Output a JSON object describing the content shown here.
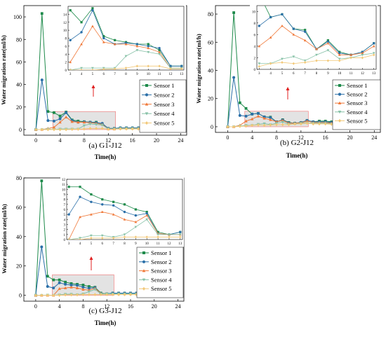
{
  "colors": {
    "Sensor 1": "#1d8a4a",
    "Sensor 2": "#2a6fa8",
    "Sensor 3": "#f07838",
    "Sensor 4": "#88c2a8",
    "Sensor 5": "#f2c878",
    "highlight_fill": "#e3e3e3",
    "highlight_stroke": "#f08080",
    "arrow": "#e02020"
  },
  "markers": {
    "Sensor 1": "square",
    "Sensor 2": "circle",
    "Sensor 3": "triangle-up",
    "Sensor 4": "triangle-down",
    "Sensor 5": "diamond"
  },
  "chart_data": [
    {
      "type": "line",
      "caption": "(a) G1-J12",
      "xlabel": "Time(h)",
      "ylabel": "Water migration rate(ml/h)",
      "xlim": [
        -2,
        25
      ],
      "ylim": [
        -5,
        110
      ],
      "xticks": [
        0,
        4,
        8,
        12,
        16,
        20,
        24
      ],
      "yticks": [
        0,
        20,
        40,
        60,
        80,
        100
      ],
      "legend": "right",
      "x": [
        0,
        1,
        2,
        3,
        4,
        5,
        6,
        7,
        8,
        9,
        10,
        11,
        12,
        13,
        14,
        15,
        16,
        17,
        18,
        19,
        20,
        21,
        22,
        23,
        24
      ],
      "series": [
        {
          "name": "Sensor 1",
          "values": [
            0,
            103,
            16,
            15,
            12,
            15.5,
            8.5,
            7.5,
            7,
            6.5,
            6.5,
            5,
            1,
            1,
            1.5,
            1.5,
            1.5,
            1.5,
            1.5,
            1.5,
            1.5,
            1,
            1,
            1,
            1
          ]
        },
        {
          "name": "Sensor 2",
          "values": [
            0,
            44,
            8,
            7.5,
            9.5,
            15,
            8,
            6.5,
            6.8,
            6.5,
            6,
            5.5,
            1,
            1,
            1.5,
            1.5,
            1.5,
            1.5,
            1.5,
            1.5,
            1.5,
            1,
            1,
            1,
            1
          ]
        },
        {
          "name": "Sensor 3",
          "values": [
            0,
            0,
            1,
            2,
            6.5,
            11,
            7,
            6.5,
            6.5,
            6,
            5.5,
            4.5,
            0.5,
            0.5,
            1,
            1,
            1,
            1,
            1,
            1,
            1,
            1,
            1,
            1,
            1
          ]
        },
        {
          "name": "Sensor 4",
          "values": [
            0,
            0,
            0.5,
            0,
            0.5,
            0.5,
            0.5,
            0.5,
            3.5,
            5,
            4.5,
            4,
            0.5,
            0.5,
            1,
            1,
            1,
            1,
            1,
            1,
            1,
            1,
            1,
            1,
            1
          ]
        },
        {
          "name": "Sensor 5",
          "values": [
            0,
            0,
            0,
            0,
            0,
            0,
            0.2,
            0.3,
            0.5,
            1,
            1,
            1,
            0.3,
            0.3,
            0.5,
            0.5,
            0.5,
            0.5,
            0.5,
            0.5,
            0.5,
            0.5,
            0.5,
            0.5,
            0.5
          ]
        }
      ],
      "inset": {
        "xlim": [
          2.8,
          13.2
        ],
        "ylim": [
          0,
          16
        ],
        "xticks": [
          3,
          4,
          5,
          6,
          7,
          8,
          9,
          10,
          11,
          12,
          13
        ],
        "yticks": [
          0,
          2,
          4,
          6,
          8,
          10,
          12,
          14
        ]
      }
    },
    {
      "type": "line",
      "caption": "(b) G2-J12",
      "xlabel": "Time(h)",
      "ylabel": "Water migration rate(ml/h)",
      "xlim": [
        -2,
        25
      ],
      "ylim": [
        -4,
        86
      ],
      "xticks": [
        0,
        4,
        8,
        12,
        16,
        20,
        24
      ],
      "yticks": [
        0,
        20,
        40,
        60,
        80
      ],
      "legend": "right",
      "x": [
        0,
        1,
        2,
        3,
        4,
        5,
        6,
        7,
        8,
        9,
        10,
        11,
        12,
        13,
        14,
        15,
        16,
        17,
        18,
        19,
        20,
        21,
        22,
        23,
        24
      ],
      "series": [
        {
          "name": "Sensor 1",
          "values": [
            0,
            81,
            17,
            13,
            9,
            9.5,
            7,
            6.8,
            3.5,
            5,
            3,
            2.5,
            3,
            4.5,
            3.5,
            4,
            4,
            3.5,
            3,
            2.5,
            2.5,
            2.5,
            2.5,
            2.5,
            2
          ]
        },
        {
          "name": "Sensor 2",
          "values": [
            0,
            35,
            8,
            7.5,
            9,
            9.5,
            7,
            6.5,
            3.5,
            4.8,
            2.8,
            2.5,
            3,
            4.5,
            3.5,
            3.5,
            3.5,
            3,
            2.5,
            2.5,
            2.5,
            2.5,
            2.5,
            2.5,
            2
          ]
        },
        {
          "name": "Sensor 3",
          "values": [
            0,
            0,
            1,
            4,
            5.5,
            7.5,
            6,
            5,
            3.5,
            4.5,
            2.5,
            2.5,
            2.8,
            4,
            3,
            3,
            3,
            2.5,
            2.5,
            2,
            2,
            2,
            2,
            2,
            2
          ]
        },
        {
          "name": "Sensor 4",
          "values": [
            0,
            0,
            0.5,
            1,
            1,
            1.8,
            2.2,
            1.5,
            2.5,
            3.3,
            1.8,
            2,
            2.5,
            2.8,
            2.5,
            2.5,
            2.5,
            2,
            2,
            2,
            1.8,
            1.8,
            1.8,
            1.8,
            1.5
          ]
        },
        {
          "name": "Sensor 5",
          "values": [
            0,
            0,
            0.3,
            0.5,
            1,
            1.2,
            1,
            1.2,
            1.5,
            1.5,
            1.5,
            2,
            2,
            2.5,
            2,
            2,
            2,
            1.8,
            1.8,
            1.5,
            1.5,
            1.5,
            1.5,
            1.5,
            1.5
          ]
        }
      ],
      "inset": {
        "xlim": [
          2.8,
          13.2
        ],
        "ylim": [
          0,
          11
        ],
        "xticks": [
          3,
          4,
          5,
          6,
          7,
          8,
          9,
          10,
          11,
          12,
          13
        ],
        "yticks": [
          0,
          2,
          4,
          6,
          8,
          10
        ]
      }
    },
    {
      "type": "line",
      "caption": "(c) G3-J12",
      "xlabel": "Time(h)",
      "ylabel": "Water migration rate(ml/h)",
      "xlim": [
        -2,
        25
      ],
      "ylim": [
        -4,
        80
      ],
      "xticks": [
        0,
        4,
        8,
        12,
        16,
        20,
        24
      ],
      "yticks": [
        0,
        20,
        40,
        60,
        80
      ],
      "legend": "right",
      "x": [
        0,
        1,
        2,
        3,
        4,
        5,
        6,
        7,
        8,
        9,
        10,
        11,
        12,
        13,
        14,
        15,
        16,
        17,
        18,
        19,
        20,
        21,
        22,
        23,
        24
      ],
      "series": [
        {
          "name": "Sensor 1",
          "values": [
            0,
            78,
            13,
            10.5,
            10.5,
            9,
            8,
            7.5,
            7,
            6,
            5.5,
            1.5,
            1,
            1.5,
            1.5,
            1.5,
            1.5,
            1.5,
            1.5,
            1.5,
            1.5,
            1.5,
            1.5,
            1.5,
            1
          ]
        },
        {
          "name": "Sensor 2",
          "values": [
            0,
            33,
            6,
            5,
            8.5,
            7.5,
            7,
            6.8,
            5.5,
            4.8,
            5.2,
            1.2,
            1,
            1.5,
            1.5,
            1.5,
            1.5,
            1.5,
            1.5,
            1.5,
            1.5,
            1.5,
            1.5,
            1.5,
            1
          ]
        },
        {
          "name": "Sensor 3",
          "values": [
            0,
            0,
            0,
            0,
            4.5,
            5,
            5.5,
            5,
            4,
            3.5,
            4.8,
            1.2,
            1,
            1,
            1,
            1,
            1,
            1,
            1,
            1,
            1,
            1,
            1,
            1,
            1
          ]
        },
        {
          "name": "Sensor 4",
          "values": [
            0,
            0,
            0.2,
            0,
            0.3,
            0.8,
            0.8,
            0.5,
            1,
            2.5,
            4,
            1,
            1,
            1,
            1,
            1,
            1,
            1,
            1,
            1,
            1,
            1,
            1,
            1,
            1
          ]
        },
        {
          "name": "Sensor 5",
          "values": [
            0,
            0,
            0,
            0,
            0,
            0.3,
            0.3,
            0.3,
            0.5,
            0.5,
            0.5,
            0.5,
            0.5,
            0.5,
            0.5,
            0.5,
            0.5,
            0.5,
            0.5,
            0.5,
            0.5,
            0.5,
            0.5,
            0.5,
            0.5
          ]
        }
      ],
      "inset": {
        "xlim": [
          2.8,
          13.2
        ],
        "ylim": [
          0,
          12
        ],
        "xticks": [
          3,
          4,
          5,
          6,
          7,
          8,
          9,
          10,
          11,
          12,
          13
        ],
        "yticks": [
          0,
          1,
          2,
          3,
          4,
          5,
          6,
          7,
          8,
          9,
          10,
          11,
          12
        ]
      }
    }
  ]
}
